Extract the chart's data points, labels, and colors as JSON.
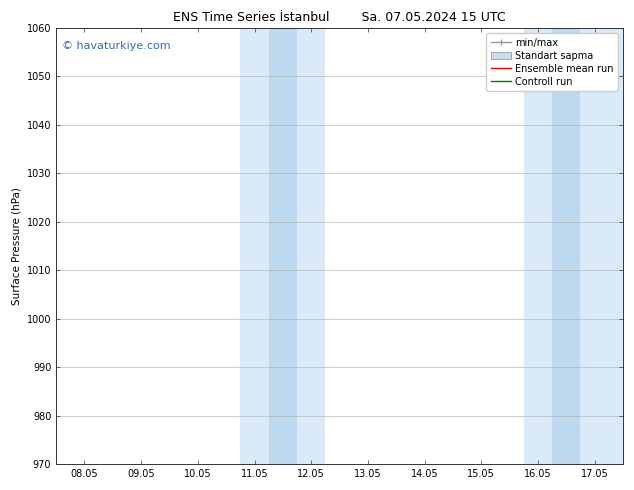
{
  "title": "ENS Time Series İstanbul",
  "title2": "Sa. 07.05.2024 15 UTC",
  "ylabel": "Surface Pressure (hPa)",
  "ylim": [
    970,
    1060
  ],
  "yticks": [
    970,
    980,
    990,
    1000,
    1010,
    1020,
    1030,
    1040,
    1050,
    1060
  ],
  "xtick_labels": [
    "08.05",
    "09.05",
    "10.05",
    "11.05",
    "12.05",
    "13.05",
    "14.05",
    "15.05",
    "16.05",
    "17.05"
  ],
  "xtick_positions": [
    0,
    1,
    2,
    3,
    4,
    5,
    6,
    7,
    8,
    9
  ],
  "xlim_start": -0.5,
  "xlim_end": 9.5,
  "shaded_regions": [
    {
      "x_start": 2.75,
      "x_end": 4.25,
      "color": "#daeaf8"
    },
    {
      "x_start": 7.75,
      "x_end": 9.5,
      "color": "#daeaf8"
    }
  ],
  "shaded_inner_left": {
    "x_start": 3.25,
    "x_end": 3.75,
    "color": "#bdd8ef"
  },
  "shaded_inner_right": {
    "x_start": 8.25,
    "x_end": 8.75,
    "color": "#bdd8ef"
  },
  "watermark_text": "© havaturkiye.com",
  "watermark_color": "#3366cc",
  "legend_items": [
    {
      "label": "min/max",
      "color": "#999999",
      "lw": 1.0
    },
    {
      "label": "Standart sapma",
      "color": "#ccddee",
      "lw": 6
    },
    {
      "label": "Ensemble mean run",
      "color": "red",
      "lw": 1.0
    },
    {
      "label": "Controll run",
      "color": "green",
      "lw": 1.0
    }
  ],
  "background_color": "#ffffff",
  "spine_color": "#333333",
  "tick_color": "#333333",
  "grid_color": "#aaaaaa",
  "title_fontsize": 9,
  "axis_label_fontsize": 7.5,
  "tick_fontsize": 7,
  "watermark_fontsize": 8,
  "legend_fontsize": 7
}
